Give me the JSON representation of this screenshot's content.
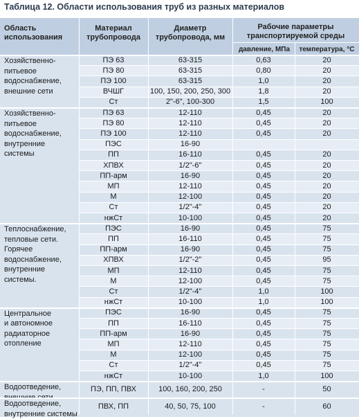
{
  "title": "Таблица 12. Области использования труб из разных материалов",
  "header": {
    "area": "Область\nиспользования",
    "material": "Материал\nтрубопровода",
    "diameter": "Диаметр\nтрубопровода, мм",
    "params": "Рабочие параметры\nтранспортируемой среды",
    "pressure": "давление, МПа",
    "temperature": "температура, °С"
  },
  "groups": [
    {
      "label": "Хозяйственно-\nпитьевое\nводоснабжение,\nвнешние сети",
      "rows": [
        [
          "ПЭ 63",
          "63-315",
          "0,63",
          "20"
        ],
        [
          "ПЭ 80",
          "63-315",
          "0,80",
          "20"
        ],
        [
          "ПЭ 100",
          "63-315",
          "1,0",
          "20"
        ],
        [
          "ВЧШГ",
          "100, 150, 200, 250, 300",
          "1,8",
          "20"
        ],
        [
          "Ст",
          "2\"-6\", 100-300",
          "1,5",
          "100"
        ]
      ]
    },
    {
      "label": "Хозяйственно-\nпитьевое\nводоснабжение,\nвнутренние\nсистемы",
      "rows": [
        [
          "ПЭ 63",
          "12-110",
          "0,45",
          "20"
        ],
        [
          "ПЭ 80",
          "12-110",
          "0,45",
          "20"
        ],
        [
          "ПЭ 100",
          "12-110",
          "0,45",
          "20"
        ],
        [
          "ПЭС",
          "16-90",
          "",
          ""
        ],
        [
          "ПП",
          "16-110",
          "0,45",
          "20"
        ],
        [
          "ХПВХ",
          "1/2\"-6\"",
          "0,45",
          "20"
        ],
        [
          "ПП-арм",
          "16-90",
          "0,45",
          "20"
        ],
        [
          "МП",
          "12-110",
          "0,45",
          "20"
        ],
        [
          "М",
          "12-100",
          "0,45",
          "20"
        ],
        [
          "Ст",
          "1/2\"-4\"",
          "0,45",
          "20"
        ],
        [
          "нжСт",
          "10-100",
          "0,45",
          "20"
        ]
      ]
    },
    {
      "label": "Теплоснабжение,\nтепловые сети.\nГорячее\nводоснабжение,\nвнутренние\nсистемы.",
      "rows": [
        [
          "ПЭС",
          "16-90",
          "0,45",
          "75"
        ],
        [
          "ПП",
          "16-110",
          "0,45",
          "75"
        ],
        [
          "ПП-арм",
          "16-90",
          "0,45",
          "75"
        ],
        [
          "ХПВХ",
          "1/2\"-2\"",
          "0,45",
          "95"
        ],
        [
          "МП",
          "12-110",
          "0,45",
          "75"
        ],
        [
          "М",
          "12-100",
          "0,45",
          "75"
        ],
        [
          "Ст",
          "1/2\"-4\"",
          "1,0",
          "100"
        ],
        [
          "нжСт",
          "10-100",
          "1,0",
          "100"
        ]
      ]
    },
    {
      "label": "Центральное\nи автономное\nрадиаторное\nотопление",
      "rows": [
        [
          "ПЭС",
          "16-90",
          "0,45",
          "75"
        ],
        [
          "ПП",
          "16-110",
          "0,45",
          "75"
        ],
        [
          "ПП-арм",
          "16-90",
          "0,45",
          "75"
        ],
        [
          "МП",
          "12-110",
          "0,45",
          "75"
        ],
        [
          "М",
          "12-100",
          "0,45",
          "75"
        ],
        [
          "Ст",
          "1/2\"-4\"",
          "0,45",
          "75"
        ],
        [
          "нжСт",
          "10-100",
          "1,0",
          "100"
        ]
      ]
    },
    {
      "label": "Водоотведение,\nвнешние сети",
      "rows": [
        [
          "ПЭ, ПП, ПВХ",
          "100, 160, 200, 250",
          "-",
          "50"
        ]
      ]
    },
    {
      "label": "Водоотведение,\nвнутренние системы",
      "rows": [
        [
          "ПВХ, ПП",
          "40, 50, 75, 100",
          "-",
          "60"
        ]
      ]
    }
  ],
  "colors": {
    "header_bg": "#bfcfe1",
    "row_bg_a": "#d9e3ee",
    "row_bg_b": "#e6edf5",
    "grid": "#ffffff",
    "title": "#2b3b4f"
  }
}
